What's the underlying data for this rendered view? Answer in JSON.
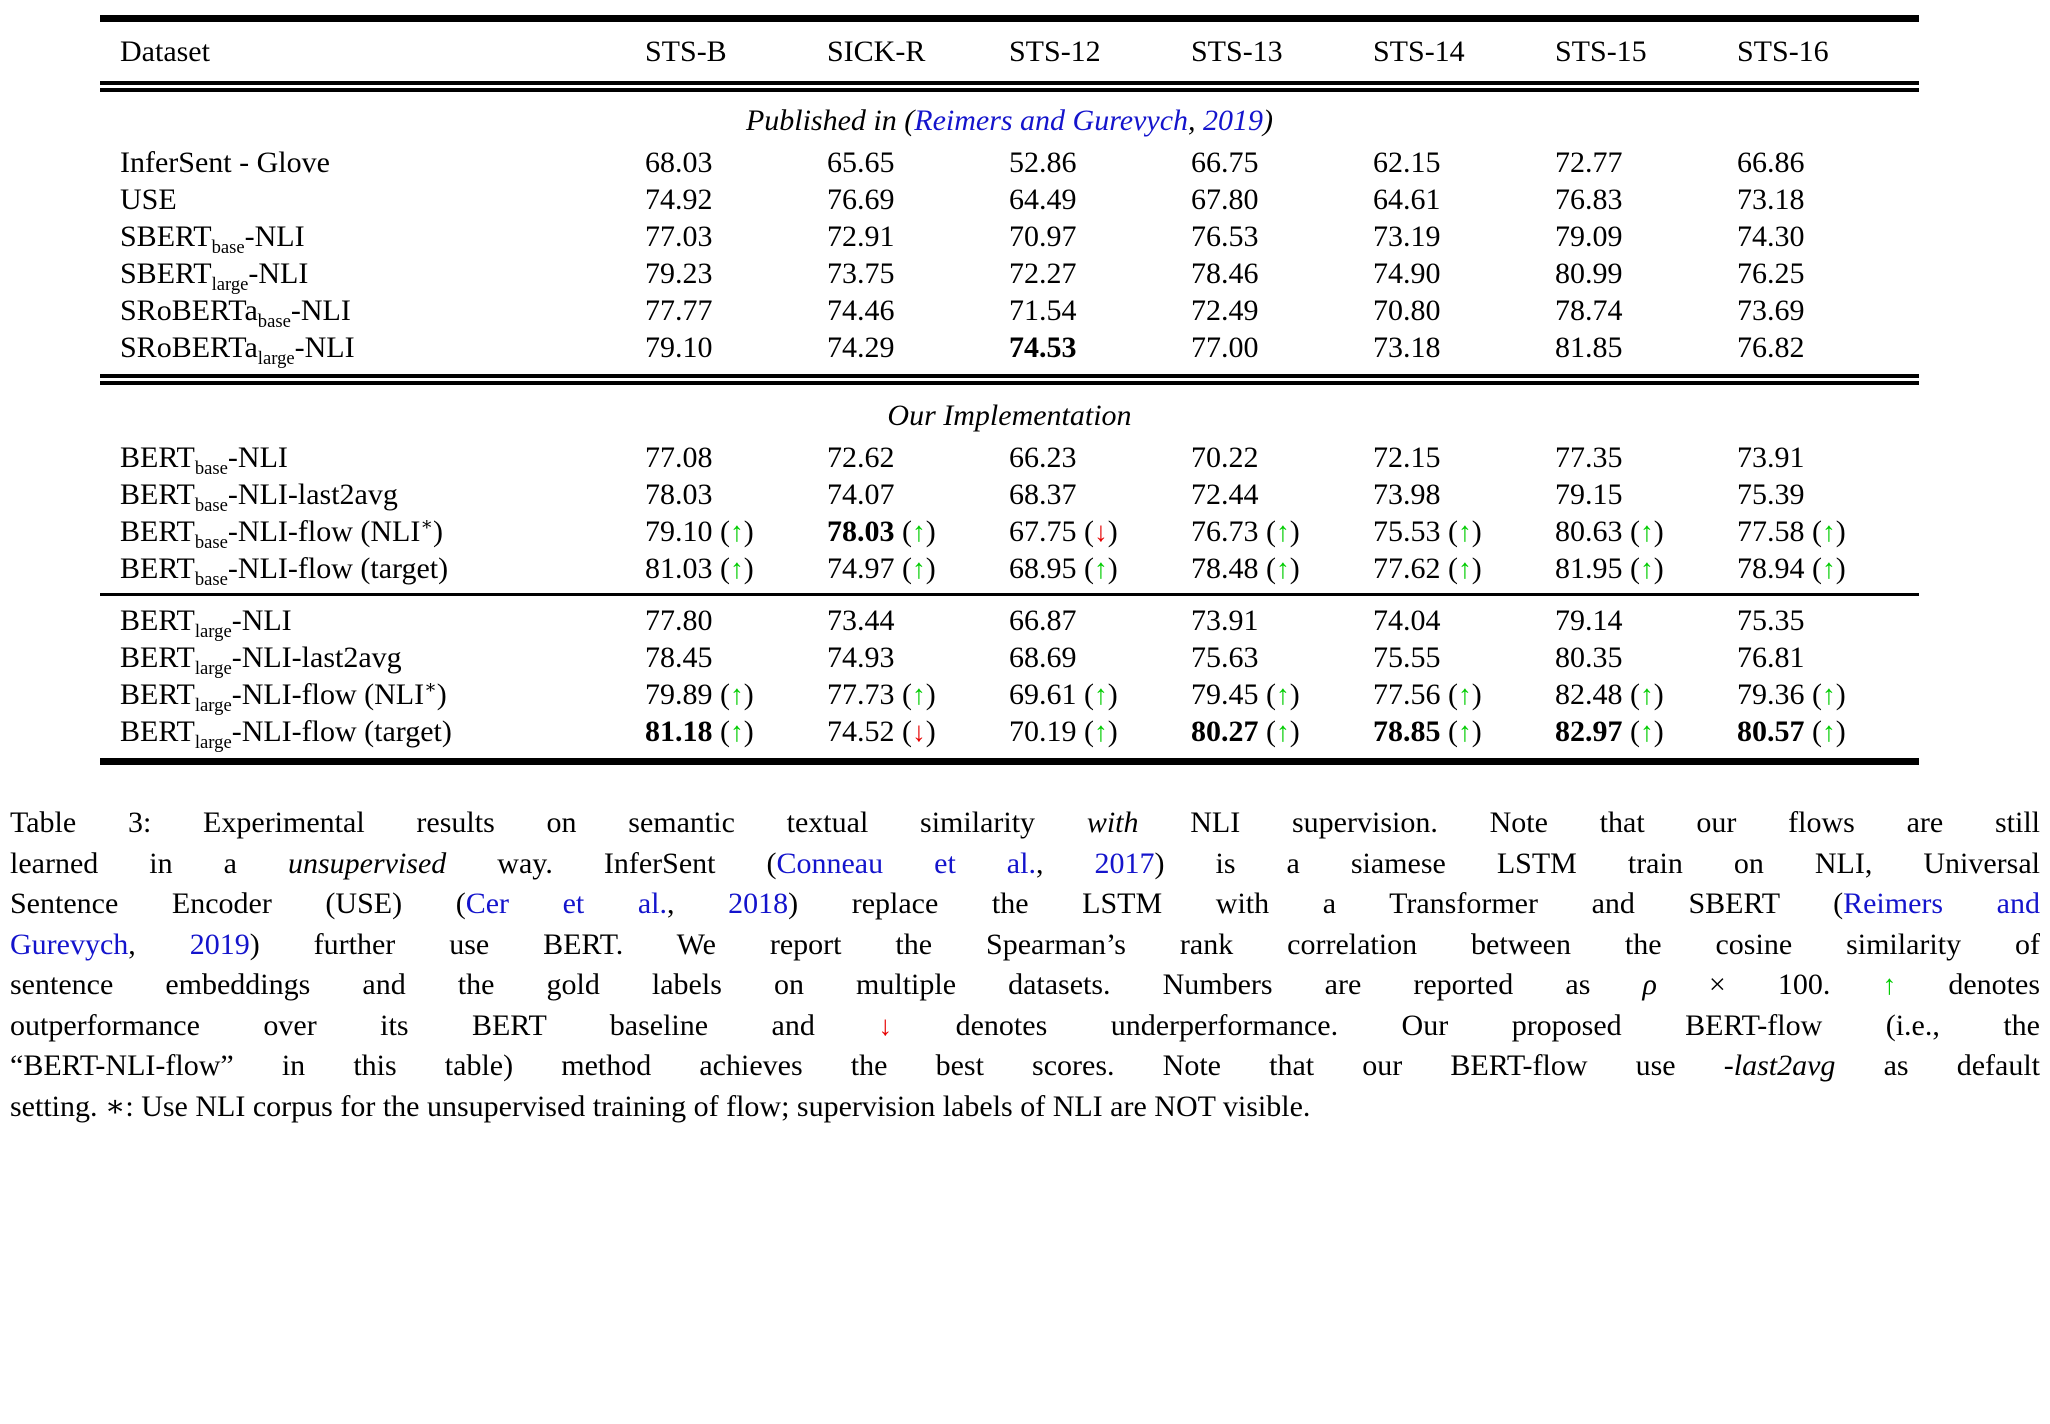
{
  "colors": {
    "link_blue": "#1414CC",
    "arrow_up_green": "#00CC00",
    "arrow_down_red": "#E60000"
  },
  "table": {
    "columns": [
      "Dataset",
      "STS-B",
      "SICK-R",
      "STS-12",
      "STS-13",
      "STS-14",
      "STS-15",
      "STS-16"
    ],
    "sections": [
      {
        "header": [
          {
            "t": "Published in ("
          },
          {
            "t": "Reimers and Gurevych",
            "s": "link"
          },
          {
            "t": ", "
          },
          {
            "t": "2019",
            "s": "link"
          },
          {
            "t": ")"
          }
        ],
        "groups": [
          {
            "rows": [
              {
                "label": [
                  {
                    "t": "InferSent - Glove"
                  }
                ],
                "cells": [
                  {
                    "v": "68.03"
                  },
                  {
                    "v": "65.65"
                  },
                  {
                    "v": "52.86"
                  },
                  {
                    "v": "66.75"
                  },
                  {
                    "v": "62.15"
                  },
                  {
                    "v": "72.77"
                  },
                  {
                    "v": "66.86"
                  }
                ]
              },
              {
                "label": [
                  {
                    "t": "USE"
                  }
                ],
                "cells": [
                  {
                    "v": "74.92"
                  },
                  {
                    "v": "76.69"
                  },
                  {
                    "v": "64.49"
                  },
                  {
                    "v": "67.80"
                  },
                  {
                    "v": "64.61"
                  },
                  {
                    "v": "76.83"
                  },
                  {
                    "v": "73.18"
                  }
                ]
              },
              {
                "label": [
                  {
                    "t": "SBERT"
                  },
                  {
                    "t": "base",
                    "s": "sub"
                  },
                  {
                    "t": "-NLI"
                  }
                ],
                "cells": [
                  {
                    "v": "77.03"
                  },
                  {
                    "v": "72.91"
                  },
                  {
                    "v": "70.97"
                  },
                  {
                    "v": "76.53"
                  },
                  {
                    "v": "73.19"
                  },
                  {
                    "v": "79.09"
                  },
                  {
                    "v": "74.30"
                  }
                ]
              },
              {
                "label": [
                  {
                    "t": "SBERT"
                  },
                  {
                    "t": "large",
                    "s": "sub"
                  },
                  {
                    "t": "-NLI"
                  }
                ],
                "cells": [
                  {
                    "v": "79.23"
                  },
                  {
                    "v": "73.75"
                  },
                  {
                    "v": "72.27"
                  },
                  {
                    "v": "78.46"
                  },
                  {
                    "v": "74.90"
                  },
                  {
                    "v": "80.99"
                  },
                  {
                    "v": "76.25"
                  }
                ]
              },
              {
                "label": [
                  {
                    "t": "SRoBERTa"
                  },
                  {
                    "t": "base",
                    "s": "sub"
                  },
                  {
                    "t": "-NLI"
                  }
                ],
                "cells": [
                  {
                    "v": "77.77"
                  },
                  {
                    "v": "74.46"
                  },
                  {
                    "v": "71.54"
                  },
                  {
                    "v": "72.49"
                  },
                  {
                    "v": "70.80"
                  },
                  {
                    "v": "78.74"
                  },
                  {
                    "v": "73.69"
                  }
                ]
              },
              {
                "label": [
                  {
                    "t": "SRoBERTa"
                  },
                  {
                    "t": "large",
                    "s": "sub"
                  },
                  {
                    "t": "-NLI"
                  }
                ],
                "cells": [
                  {
                    "v": "79.10"
                  },
                  {
                    "v": "74.29"
                  },
                  {
                    "v": "74.53",
                    "bold": true
                  },
                  {
                    "v": "77.00"
                  },
                  {
                    "v": "73.18"
                  },
                  {
                    "v": "81.85"
                  },
                  {
                    "v": "76.82"
                  }
                ]
              }
            ]
          }
        ]
      },
      {
        "header": [
          {
            "t": "Our Implementation"
          }
        ],
        "groups": [
          {
            "rows": [
              {
                "label": [
                  {
                    "t": "BERT"
                  },
                  {
                    "t": "base",
                    "s": "sub"
                  },
                  {
                    "t": "-NLI"
                  }
                ],
                "cells": [
                  {
                    "v": "77.08"
                  },
                  {
                    "v": "72.62"
                  },
                  {
                    "v": "66.23"
                  },
                  {
                    "v": "70.22"
                  },
                  {
                    "v": "72.15"
                  },
                  {
                    "v": "77.35"
                  },
                  {
                    "v": "73.91"
                  }
                ]
              },
              {
                "label": [
                  {
                    "t": "BERT"
                  },
                  {
                    "t": "base",
                    "s": "sub"
                  },
                  {
                    "t": "-NLI-last2avg"
                  }
                ],
                "cells": [
                  {
                    "v": "78.03"
                  },
                  {
                    "v": "74.07"
                  },
                  {
                    "v": "68.37"
                  },
                  {
                    "v": "72.44"
                  },
                  {
                    "v": "73.98"
                  },
                  {
                    "v": "79.15"
                  },
                  {
                    "v": "75.39"
                  }
                ]
              },
              {
                "label": [
                  {
                    "t": "BERT"
                  },
                  {
                    "t": "base",
                    "s": "sub"
                  },
                  {
                    "t": "-NLI-flow (NLI"
                  },
                  {
                    "t": "∗",
                    "s": "sup"
                  },
                  {
                    "t": ")"
                  }
                ],
                "cells": [
                  {
                    "v": "79.10",
                    "arrow": "up"
                  },
                  {
                    "v": "78.03",
                    "bold": true,
                    "arrow": "up"
                  },
                  {
                    "v": "67.75",
                    "arrow": "down"
                  },
                  {
                    "v": "76.73",
                    "arrow": "up"
                  },
                  {
                    "v": "75.53",
                    "arrow": "up"
                  },
                  {
                    "v": "80.63",
                    "arrow": "up"
                  },
                  {
                    "v": "77.58",
                    "arrow": "up"
                  }
                ]
              },
              {
                "label": [
                  {
                    "t": "BERT"
                  },
                  {
                    "t": "base",
                    "s": "sub"
                  },
                  {
                    "t": "-NLI-flow (target)"
                  }
                ],
                "cells": [
                  {
                    "v": "81.03",
                    "arrow": "up"
                  },
                  {
                    "v": "74.97",
                    "arrow": "up"
                  },
                  {
                    "v": "68.95",
                    "arrow": "up"
                  },
                  {
                    "v": "78.48",
                    "arrow": "up"
                  },
                  {
                    "v": "77.62",
                    "arrow": "up"
                  },
                  {
                    "v": "81.95",
                    "arrow": "up"
                  },
                  {
                    "v": "78.94",
                    "arrow": "up"
                  }
                ]
              }
            ]
          },
          {
            "rows": [
              {
                "label": [
                  {
                    "t": "BERT"
                  },
                  {
                    "t": "large",
                    "s": "sub"
                  },
                  {
                    "t": "-NLI"
                  }
                ],
                "cells": [
                  {
                    "v": "77.80"
                  },
                  {
                    "v": "73.44"
                  },
                  {
                    "v": "66.87"
                  },
                  {
                    "v": "73.91"
                  },
                  {
                    "v": "74.04"
                  },
                  {
                    "v": "79.14"
                  },
                  {
                    "v": "75.35"
                  }
                ]
              },
              {
                "label": [
                  {
                    "t": "BERT"
                  },
                  {
                    "t": "large",
                    "s": "sub"
                  },
                  {
                    "t": "-NLI-last2avg"
                  }
                ],
                "cells": [
                  {
                    "v": "78.45"
                  },
                  {
                    "v": "74.93"
                  },
                  {
                    "v": "68.69"
                  },
                  {
                    "v": "75.63"
                  },
                  {
                    "v": "75.55"
                  },
                  {
                    "v": "80.35"
                  },
                  {
                    "v": "76.81"
                  }
                ]
              },
              {
                "label": [
                  {
                    "t": "BERT"
                  },
                  {
                    "t": "large",
                    "s": "sub"
                  },
                  {
                    "t": "-NLI-flow (NLI"
                  },
                  {
                    "t": "∗",
                    "s": "sup"
                  },
                  {
                    "t": ")"
                  }
                ],
                "cells": [
                  {
                    "v": "79.89",
                    "arrow": "up"
                  },
                  {
                    "v": "77.73",
                    "arrow": "up"
                  },
                  {
                    "v": "69.61",
                    "arrow": "up"
                  },
                  {
                    "v": "79.45",
                    "arrow": "up"
                  },
                  {
                    "v": "77.56",
                    "arrow": "up"
                  },
                  {
                    "v": "82.48",
                    "arrow": "up"
                  },
                  {
                    "v": "79.36",
                    "arrow": "up"
                  }
                ]
              },
              {
                "label": [
                  {
                    "t": "BERT"
                  },
                  {
                    "t": "large",
                    "s": "sub"
                  },
                  {
                    "t": "-NLI-flow (target)"
                  }
                ],
                "cells": [
                  {
                    "v": "81.18",
                    "bold": true,
                    "arrow": "up"
                  },
                  {
                    "v": "74.52",
                    "arrow": "down"
                  },
                  {
                    "v": "70.19",
                    "arrow": "up"
                  },
                  {
                    "v": "80.27",
                    "bold": true,
                    "arrow": "up"
                  },
                  {
                    "v": "78.85",
                    "bold": true,
                    "arrow": "up"
                  },
                  {
                    "v": "82.97",
                    "bold": true,
                    "arrow": "up"
                  },
                  {
                    "v": "80.57",
                    "bold": true,
                    "arrow": "up"
                  }
                ]
              }
            ]
          }
        ]
      }
    ]
  },
  "caption": {
    "lines": [
      [
        {
          "t": "Table 3: Experimental results on semantic textual similarity "
        },
        {
          "t": "with",
          "s": "i"
        },
        {
          "t": " NLI supervision. Note that our flows are still"
        }
      ],
      [
        {
          "t": "learned in a "
        },
        {
          "t": "unsupervised",
          "s": "i"
        },
        {
          "t": " way. InferSent ("
        },
        {
          "t": "Conneau et al.",
          "s": "link"
        },
        {
          "t": ", "
        },
        {
          "t": "2017",
          "s": "link"
        },
        {
          "t": ") is a siamese LSTM train on NLI, Universal"
        }
      ],
      [
        {
          "t": "Sentence Encoder (USE) ("
        },
        {
          "t": "Cer et al.",
          "s": "link"
        },
        {
          "t": ", "
        },
        {
          "t": "2018",
          "s": "link"
        },
        {
          "t": ") replace the LSTM with a Transformer and SBERT ("
        },
        {
          "t": "Reimers and",
          "s": "link"
        }
      ],
      [
        {
          "t": "Gurevych",
          "s": "link"
        },
        {
          "t": ", "
        },
        {
          "t": "2019",
          "s": "link"
        },
        {
          "t": ") further use BERT. We report the Spearman’s rank correlation between the cosine similarity of"
        }
      ],
      [
        {
          "t": "sentence embeddings and the gold labels on multiple datasets. Numbers are reported as "
        },
        {
          "t": "ρ",
          "s": "i"
        },
        {
          "t": " × 100. "
        },
        {
          "t": "↑",
          "s": "up arr"
        },
        {
          "t": " denotes"
        }
      ],
      [
        {
          "t": "outperformance over its BERT baseline and "
        },
        {
          "t": "↓",
          "s": "down arr"
        },
        {
          "t": " denotes underperformance. Our proposed BERT-flow (i.e., the"
        }
      ],
      [
        {
          "t": "“BERT-NLI-flow” in this table) method achieves the best scores. Note that our BERT-flow use -"
        },
        {
          "t": "last2avg",
          "s": "i"
        },
        {
          "t": " as default"
        }
      ],
      [
        {
          "t": "setting. ∗: Use NLI corpus for the unsupervised training of flow; supervision labels of NLI are NOT visible."
        }
      ]
    ]
  }
}
